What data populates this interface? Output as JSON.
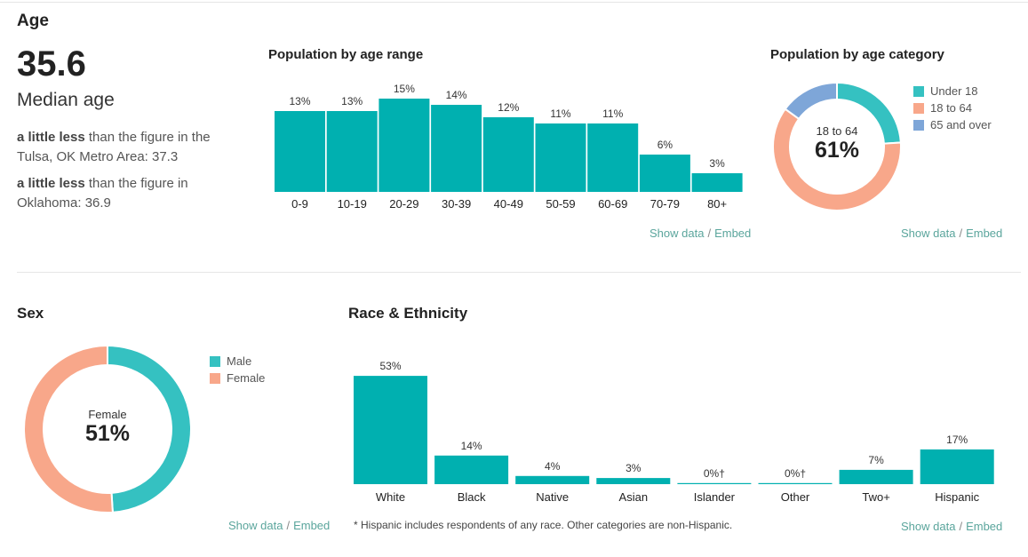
{
  "age": {
    "title": "Age",
    "median_value": "35.6",
    "median_label": "Median age",
    "compare1_bold": "a little less",
    "compare1_text": " than the figure in the Tulsa, OK Metro Area: 37.3",
    "compare2_bold": "a little less",
    "compare2_text": " than the figure in Oklahoma: 36.9"
  },
  "links": {
    "show_data": "Show data",
    "sep": "/",
    "embed": "Embed"
  },
  "sex": {
    "title": "Sex",
    "center_label": "Female",
    "center_value": "51%"
  },
  "race": {
    "title": "Race & Ethnicity",
    "footnote": "* Hispanic includes respondents of any race. Other categories are non-Hispanic."
  },
  "colors": {
    "bar": "#00b0b0",
    "under18": "#35c1c1",
    "age18to64": "#f8a78a",
    "over65": "#7ea6d8",
    "male": "#35c1c1",
    "female": "#f8a78a",
    "link": "#5aa59c"
  },
  "chart_data": [
    {
      "id": "age-range",
      "type": "bar",
      "title": "Population by age range",
      "categories": [
        "0-9",
        "10-19",
        "20-29",
        "30-39",
        "40-49",
        "50-59",
        "60-69",
        "70-79",
        "80+"
      ],
      "values": [
        13,
        13,
        15,
        14,
        12,
        11,
        11,
        6,
        3
      ],
      "labels": [
        "13%",
        "13%",
        "15%",
        "14%",
        "12%",
        "11%",
        "11%",
        "6%",
        "3%"
      ],
      "unit": "%"
    },
    {
      "id": "age-category",
      "type": "pie",
      "title": "Population by age category",
      "categories": [
        "Under 18",
        "18 to 64",
        "65 and over"
      ],
      "values": [
        24,
        61,
        15
      ],
      "center_label": "18 to 64",
      "center_value": "61%"
    },
    {
      "id": "sex",
      "type": "pie",
      "title": "Sex",
      "categories": [
        "Male",
        "Female"
      ],
      "values": [
        49,
        51
      ]
    },
    {
      "id": "race",
      "type": "bar",
      "title": "Race & Ethnicity",
      "categories": [
        "White",
        "Black",
        "Native",
        "Asian",
        "Islander",
        "Other",
        "Two+",
        "Hispanic"
      ],
      "values": [
        53,
        14,
        4,
        3,
        0,
        0,
        7,
        17
      ],
      "labels": [
        "53%",
        "14%",
        "4%",
        "3%",
        "0%†",
        "0%†",
        "7%",
        "17%"
      ],
      "unit": "%"
    }
  ]
}
